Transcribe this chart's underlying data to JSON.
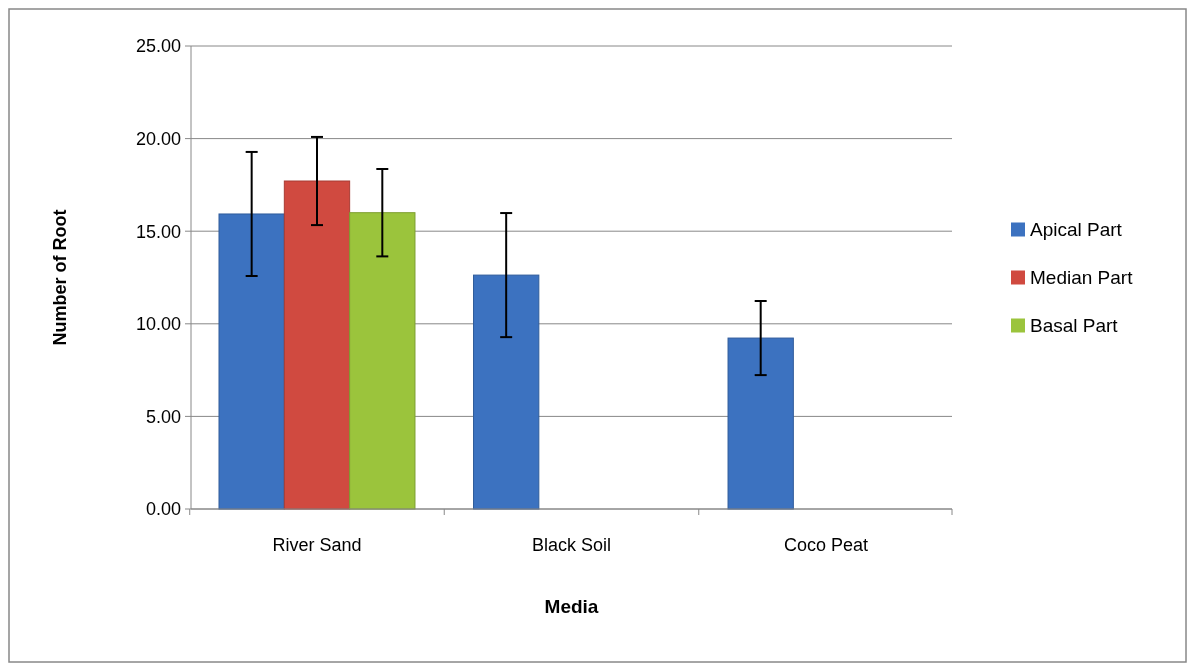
{
  "chart_data": {
    "type": "bar",
    "xlabel": "Media",
    "ylabel": "Number of Root",
    "categories": [
      "River Sand",
      "Black Soil",
      "Coco Peat"
    ],
    "series": [
      {
        "name": "Apical Part",
        "color": "#3c72c0",
        "values": [
          15.93,
          12.63,
          9.23
        ],
        "errors": [
          3.35,
          3.35,
          2.0
        ]
      },
      {
        "name": "Median Part",
        "color": "#d04a40",
        "values": [
          17.71,
          null,
          null
        ],
        "errors": [
          2.38,
          null,
          null
        ]
      },
      {
        "name": "Basal Part",
        "color": "#9bc43c",
        "values": [
          16.0,
          null,
          null
        ],
        "errors": [
          2.36,
          null,
          null
        ]
      }
    ],
    "ylim": [
      0,
      25
    ],
    "yticks": [
      {
        "value": 0,
        "label": "0.00"
      },
      {
        "value": 5,
        "label": "5.00"
      },
      {
        "value": 10,
        "label": "10.00"
      },
      {
        "value": 15,
        "label": "15.00"
      },
      {
        "value": 20,
        "label": "20.00"
      },
      {
        "value": 25,
        "label": "25.00"
      }
    ],
    "grid": "y",
    "legend": "right"
  }
}
